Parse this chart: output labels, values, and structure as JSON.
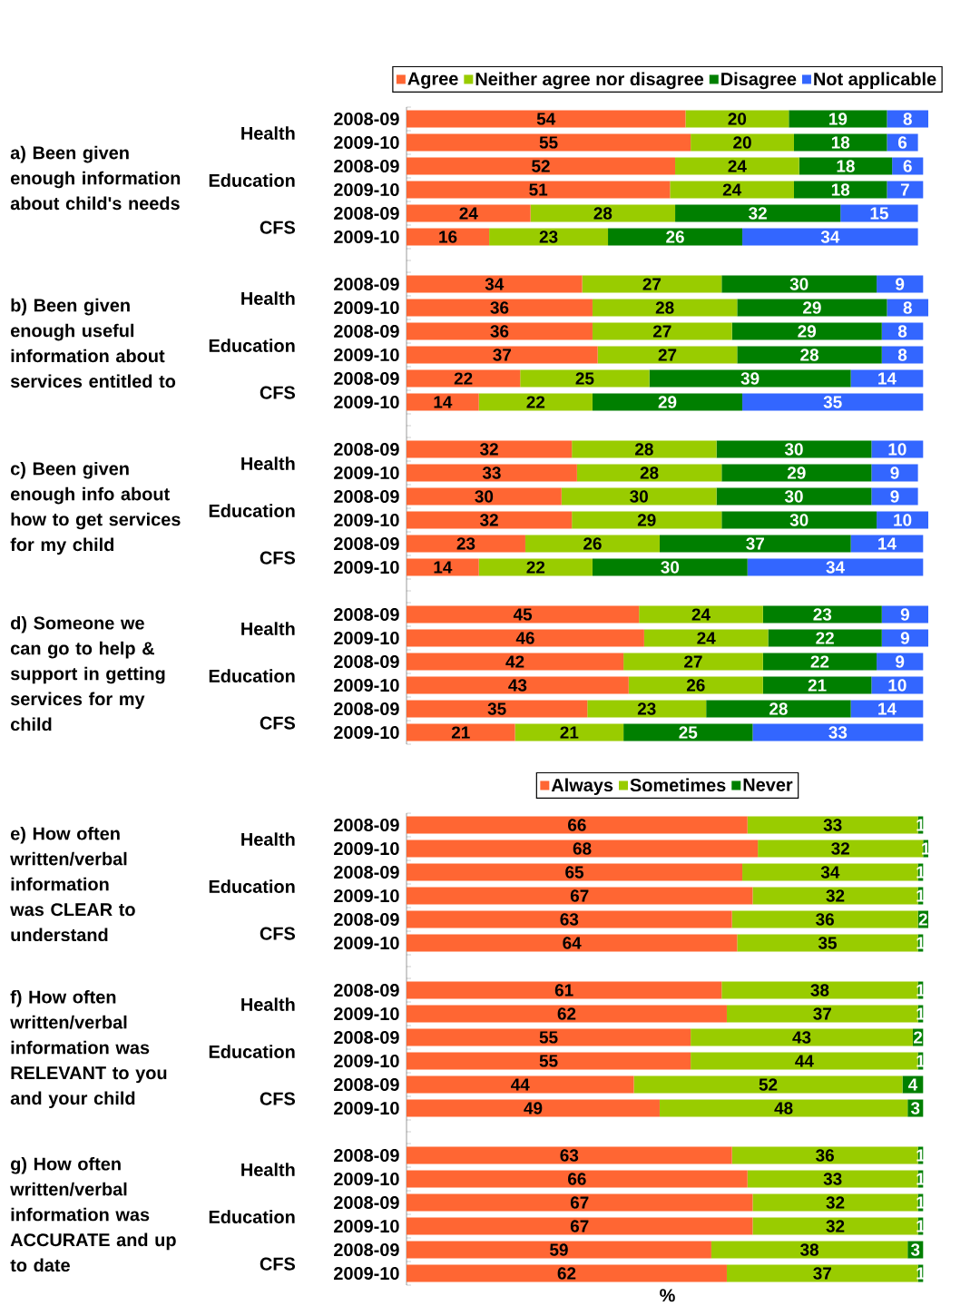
{
  "chart_data": [
    {
      "type": "bar",
      "orientation": "horizontal",
      "stacked": true,
      "data_labels": true,
      "legend": "top",
      "tick_labels": "y",
      "categories": [
        "2008-09",
        "2009-10",
        "2008-09",
        "2009-10",
        "2008-09",
        "2009-10",
        null,
        "2008-09",
        "2009-10",
        "2008-09",
        "2009-10",
        "2008-09",
        "2009-10",
        null,
        "2008-09",
        "2009-10",
        "2008-09",
        "2009-10",
        "2008-09",
        "2009-10",
        null,
        "2008-09",
        "2009-10",
        "2008-09",
        "2009-10",
        "2008-09",
        "2009-10"
      ],
      "series": [
        {
          "name": "Agree",
          "color": "#ff6633",
          "values": [
            54,
            55,
            52,
            51,
            24,
            16,
            null,
            34,
            36,
            36,
            37,
            22,
            14,
            null,
            32,
            33,
            30,
            32,
            23,
            14,
            null,
            45,
            46,
            42,
            43,
            35,
            21
          ]
        },
        {
          "name": "Neither agree nor disagree",
          "color": "#99cc00",
          "values": [
            20,
            20,
            24,
            24,
            28,
            23,
            null,
            27,
            28,
            27,
            27,
            25,
            22,
            null,
            28,
            28,
            30,
            29,
            26,
            22,
            null,
            24,
            24,
            27,
            26,
            23,
            21
          ]
        },
        {
          "name": "Disagree",
          "color": "#007f00",
          "values": [
            19,
            18,
            18,
            18,
            32,
            26,
            null,
            30,
            29,
            29,
            28,
            39,
            29,
            null,
            30,
            29,
            30,
            30,
            37,
            30,
            null,
            23,
            22,
            22,
            21,
            28,
            25
          ]
        },
        {
          "name": "Not applicable",
          "color": "#3366ff",
          "values": [
            8,
            6,
            6,
            7,
            15,
            34,
            null,
            9,
            8,
            8,
            8,
            14,
            35,
            null,
            10,
            9,
            9,
            10,
            14,
            34,
            null,
            9,
            9,
            9,
            10,
            14,
            33
          ]
        }
      ],
      "annotations": [
        "a) Been given enough information about child's needs",
        "Health",
        "Education",
        "CFS",
        "b) Been given enough useful information about services entitled to",
        "Health",
        "Education",
        "CFS",
        "c) Been given enough info about how to get services for my child",
        "Health",
        "Education",
        "CFS",
        "d) Someone we can go to help & support in getting services for my child",
        "Health",
        "Education",
        "CFS"
      ]
    },
    {
      "type": "bar",
      "orientation": "horizontal",
      "stacked": true,
      "data_labels": true,
      "legend": "top",
      "tick_labels": "y",
      "xlabel": "%",
      "categories": [
        "2008-09",
        "2009-10",
        "2008-09",
        "2009-10",
        "2008-09",
        "2009-10",
        null,
        "2008-09",
        "2009-10",
        "2008-09",
        "2009-10",
        "2008-09",
        "2009-10",
        null,
        "2008-09",
        "2009-10",
        "2008-09",
        "2009-10",
        "2008-09",
        "2009-10"
      ],
      "series": [
        {
          "name": "Always",
          "color": "#ff6633",
          "values": [
            66,
            68,
            65,
            67,
            63,
            64,
            null,
            61,
            62,
            55,
            55,
            44,
            49,
            null,
            63,
            66,
            67,
            67,
            59,
            62
          ]
        },
        {
          "name": "Sometimes",
          "color": "#99cc00",
          "values": [
            33,
            32,
            34,
            32,
            36,
            35,
            null,
            38,
            37,
            43,
            44,
            52,
            48,
            null,
            36,
            33,
            32,
            32,
            38,
            37
          ]
        },
        {
          "name": "Never",
          "color": "#007f00",
          "values": [
            1,
            1,
            1,
            1,
            2,
            1,
            null,
            1,
            1,
            2,
            1,
            4,
            3,
            null,
            1,
            1,
            1,
            1,
            3,
            1
          ]
        }
      ],
      "annotations": [
        "e) How often written/verbal information was CLEAR to understand",
        "Health",
        "Education",
        "CFS",
        "f) How often written/verbal information was RELEVANT to you and your child",
        "Health",
        "Education",
        "CFS",
        "g) How often written/verbal information was ACCURATE and up to date",
        "Health",
        "Education",
        "CFS"
      ]
    }
  ]
}
